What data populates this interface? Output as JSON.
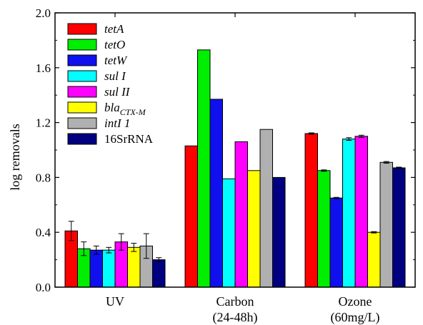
{
  "chart_data": {
    "type": "bar",
    "ylabel": "log removals",
    "ylim": [
      0.0,
      2.0
    ],
    "yticks": [
      "0.0",
      "0.4",
      "0.8",
      "1.2",
      "1.6",
      "2.0"
    ],
    "grid": false,
    "legend_position": "top-left",
    "categories": [
      {
        "line1": "UV",
        "line2": ""
      },
      {
        "line1": "Carbon",
        "line2": "(24-48h)"
      },
      {
        "line1": "Ozone",
        "line2": "(60mg/L)"
      }
    ],
    "series": [
      {
        "name": "tetA",
        "italic": true,
        "color": "#ff0000",
        "values": [
          0.41,
          1.03,
          1.12
        ],
        "errors": [
          0.07,
          0.0,
          0.005
        ]
      },
      {
        "name": "tetO",
        "italic": true,
        "color": "#00ee00",
        "values": [
          0.28,
          1.73,
          0.85
        ],
        "errors": [
          0.05,
          0.0,
          0.005
        ]
      },
      {
        "name": "tetW",
        "italic": true,
        "color": "#1010ee",
        "values": [
          0.27,
          1.37,
          0.65
        ],
        "errors": [
          0.03,
          0.0,
          0.005
        ]
      },
      {
        "name": "sul I",
        "italic": true,
        "color": "#00ffff",
        "values": [
          0.27,
          0.79,
          1.08
        ],
        "errors": [
          0.02,
          0.0,
          0.01
        ]
      },
      {
        "name": "sul II",
        "italic": true,
        "color": "#ff00ff",
        "values": [
          0.33,
          1.06,
          1.1
        ],
        "errors": [
          0.06,
          0.0,
          0.008
        ]
      },
      {
        "name": "bla",
        "subscript": "CTX-M",
        "italic": true,
        "color": "#ffff00",
        "values": [
          0.29,
          0.85,
          0.4
        ],
        "errors": [
          0.03,
          0.0,
          0.005
        ]
      },
      {
        "name": "intI 1",
        "italic": true,
        "color": "#b0b0b0",
        "values": [
          0.3,
          1.15,
          0.91
        ],
        "errors": [
          0.09,
          0.0,
          0.006
        ]
      },
      {
        "name": "16SrRNA",
        "italic": false,
        "color": "#000080",
        "values": [
          0.2,
          0.8,
          0.87
        ],
        "errors": [
          0.015,
          0.0,
          0.005
        ]
      }
    ]
  }
}
